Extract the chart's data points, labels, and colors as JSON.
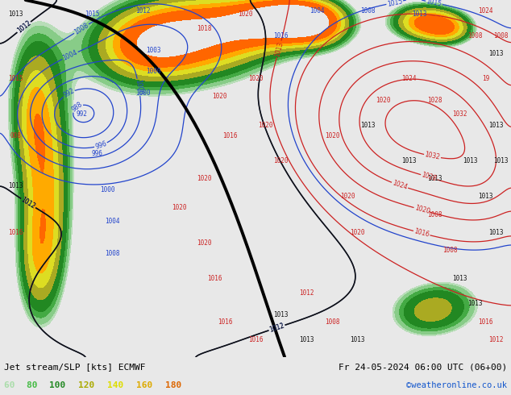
{
  "title_left": "Jet stream/SLP [kts] ECMWF",
  "title_right": "Fr 24-05-2024 06:00 UTC (06+00)",
  "watermark": "©weatheronline.co.uk",
  "legend_values": [
    "60",
    "80",
    "100",
    "120",
    "140",
    "160",
    "180"
  ],
  "legend_colors": [
    "#aaddaa",
    "#44bb44",
    "#228822",
    "#aaaa00",
    "#dddd00",
    "#ddaa00",
    "#dd6600"
  ],
  "bg_color": "#c8d8c8",
  "footer_bg": "#e8e8e8",
  "figsize": [
    6.34,
    4.9
  ],
  "dpi": 100,
  "map_bg_light": "#d8e8d8",
  "map_bg_mid": "#c0d8c0",
  "isobar_blue": "#2244cc",
  "isobar_red": "#cc2222",
  "isobar_black": "#111111",
  "jet_colors": [
    "#b8ddb8",
    "#88cc88",
    "#44aa44",
    "#228822",
    "#aaaa22",
    "#dddd22",
    "#ffaa00",
    "#ff6600"
  ],
  "jet_levels": [
    55,
    60,
    70,
    80,
    100,
    120,
    140,
    160,
    200
  ]
}
